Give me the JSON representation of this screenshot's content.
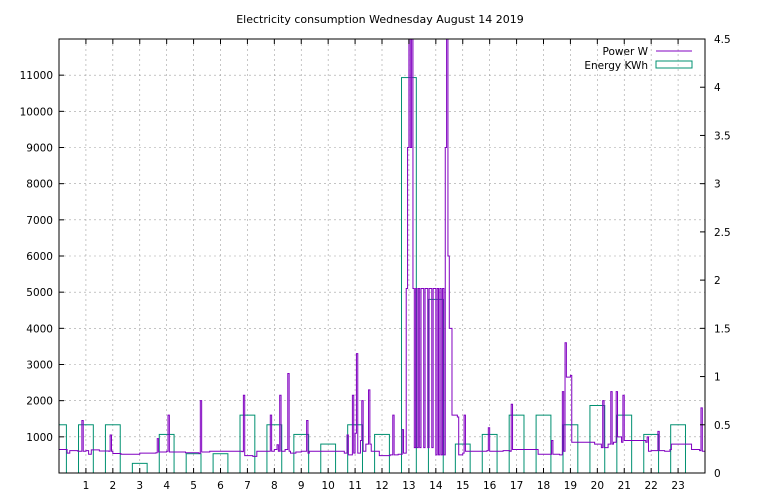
{
  "chart_data": {
    "type": "line",
    "title": "Electricity consumption Wednesday August 14 2019",
    "xlabel": "",
    "ylabel": "",
    "xlim": [
      0,
      24
    ],
    "ylim": [
      0,
      12000
    ],
    "y2lim": [
      0,
      4.5
    ],
    "x_ticks": [
      "1",
      "2",
      "3",
      "4",
      "5",
      "6",
      "7",
      "8",
      "9",
      "10",
      "11",
      "12",
      "13",
      "14",
      "15",
      "16",
      "17",
      "18",
      "19",
      "20",
      "21",
      "22",
      "23"
    ],
    "y_ticks": [
      "1000",
      "2000",
      "3000",
      "4000",
      "5000",
      "6000",
      "7000",
      "8000",
      "9000",
      "10000",
      "11000"
    ],
    "y2_ticks": [
      "0",
      "0.5",
      "1",
      "1.5",
      "2",
      "2.5",
      "3",
      "3.5",
      "4",
      "4.5"
    ],
    "grid": true,
    "legend_position": "top-right",
    "series": [
      {
        "name": "Power W",
        "axis": "left",
        "color": "#8000c0",
        "points": [
          [
            0,
            650
          ],
          [
            0.25,
            650
          ],
          [
            0.3,
            550
          ],
          [
            0.4,
            620
          ],
          [
            0.7,
            600
          ],
          [
            0.85,
            1450
          ],
          [
            0.9,
            600
          ],
          [
            1.0,
            620
          ],
          [
            1.1,
            520
          ],
          [
            1.2,
            640
          ],
          [
            1.5,
            610
          ],
          [
            1.85,
            600
          ],
          [
            1.9,
            1050
          ],
          [
            1.95,
            600
          ],
          [
            2.0,
            540
          ],
          [
            2.3,
            520
          ],
          [
            2.9,
            520
          ],
          [
            3.0,
            550
          ],
          [
            3.6,
            560
          ],
          [
            3.65,
            950
          ],
          [
            3.7,
            580
          ],
          [
            4.0,
            600
          ],
          [
            4.05,
            1600
          ],
          [
            4.1,
            580
          ],
          [
            4.7,
            560
          ],
          [
            5.0,
            560
          ],
          [
            5.2,
            540
          ],
          [
            5.25,
            2000
          ],
          [
            5.3,
            580
          ],
          [
            5.6,
            600
          ],
          [
            6.5,
            600
          ],
          [
            6.8,
            590
          ],
          [
            6.85,
            2150
          ],
          [
            6.9,
            480
          ],
          [
            7.2,
            460
          ],
          [
            7.35,
            600
          ],
          [
            7.8,
            600
          ],
          [
            7.85,
            1600
          ],
          [
            7.9,
            600
          ],
          [
            8.0,
            650
          ],
          [
            8.1,
            780
          ],
          [
            8.15,
            600
          ],
          [
            8.2,
            2150
          ],
          [
            8.25,
            600
          ],
          [
            8.4,
            650
          ],
          [
            8.5,
            2750
          ],
          [
            8.55,
            600
          ],
          [
            8.6,
            550
          ],
          [
            8.8,
            580
          ],
          [
            9.0,
            600
          ],
          [
            9.2,
            1450
          ],
          [
            9.25,
            550
          ],
          [
            9.3,
            600
          ],
          [
            10.0,
            600
          ],
          [
            10.5,
            600
          ],
          [
            10.6,
            550
          ],
          [
            10.7,
            1050
          ],
          [
            10.75,
            500
          ],
          [
            10.8,
            500
          ],
          [
            10.9,
            2150
          ],
          [
            10.95,
            550
          ],
          [
            11.0,
            1100
          ],
          [
            11.05,
            3300
          ],
          [
            11.1,
            550
          ],
          [
            11.2,
            900
          ],
          [
            11.25,
            2000
          ],
          [
            11.3,
            600
          ],
          [
            11.4,
            800
          ],
          [
            11.5,
            2300
          ],
          [
            11.55,
            800
          ],
          [
            11.6,
            600
          ],
          [
            11.8,
            600
          ],
          [
            11.9,
            480
          ],
          [
            12.3,
            500
          ],
          [
            12.4,
            1600
          ],
          [
            12.45,
            500
          ],
          [
            12.6,
            520
          ],
          [
            12.75,
            1200
          ],
          [
            12.8,
            550
          ],
          [
            12.9,
            5100
          ],
          [
            12.95,
            9000
          ],
          [
            13.0,
            12000
          ],
          [
            13.05,
            9000
          ],
          [
            13.1,
            12000
          ],
          [
            13.15,
            5100
          ],
          [
            13.2,
            700
          ],
          [
            13.25,
            5100
          ],
          [
            13.3,
            700
          ],
          [
            13.35,
            5100
          ],
          [
            13.4,
            700
          ],
          [
            13.45,
            5100
          ],
          [
            13.55,
            700
          ],
          [
            13.6,
            5100
          ],
          [
            13.7,
            700
          ],
          [
            13.75,
            5100
          ],
          [
            13.85,
            700
          ],
          [
            13.9,
            5100
          ],
          [
            14.0,
            500
          ],
          [
            14.05,
            5100
          ],
          [
            14.1,
            500
          ],
          [
            14.15,
            5100
          ],
          [
            14.2,
            500
          ],
          [
            14.25,
            5100
          ],
          [
            14.3,
            500
          ],
          [
            14.35,
            9000
          ],
          [
            14.4,
            12000
          ],
          [
            14.45,
            6000
          ],
          [
            14.5,
            4000
          ],
          [
            14.6,
            1600
          ],
          [
            14.8,
            1550
          ],
          [
            14.85,
            500
          ],
          [
            15.0,
            550
          ],
          [
            15.05,
            1600
          ],
          [
            15.1,
            600
          ],
          [
            15.3,
            600
          ],
          [
            15.9,
            620
          ],
          [
            15.95,
            1250
          ],
          [
            16.0,
            600
          ],
          [
            16.5,
            620
          ],
          [
            16.75,
            600
          ],
          [
            16.8,
            1900
          ],
          [
            16.85,
            650
          ],
          [
            17.2,
            650
          ],
          [
            17.7,
            650
          ],
          [
            17.8,
            520
          ],
          [
            18.2,
            520
          ],
          [
            18.3,
            900
          ],
          [
            18.35,
            520
          ],
          [
            18.6,
            500
          ],
          [
            18.7,
            2250
          ],
          [
            18.75,
            600
          ],
          [
            18.8,
            3600
          ],
          [
            18.85,
            2650
          ],
          [
            19.0,
            2700
          ],
          [
            19.05,
            850
          ],
          [
            19.5,
            850
          ],
          [
            19.9,
            800
          ],
          [
            20.15,
            700
          ],
          [
            20.2,
            2000
          ],
          [
            20.25,
            700
          ],
          [
            20.4,
            800
          ],
          [
            20.5,
            2250
          ],
          [
            20.55,
            800
          ],
          [
            20.6,
            850
          ],
          [
            20.7,
            2250
          ],
          [
            20.75,
            1000
          ],
          [
            20.9,
            850
          ],
          [
            20.95,
            2150
          ],
          [
            21.0,
            900
          ],
          [
            21.5,
            900
          ],
          [
            21.8,
            850
          ],
          [
            21.85,
            1000
          ],
          [
            21.9,
            600
          ],
          [
            22.0,
            620
          ],
          [
            22.2,
            620
          ],
          [
            22.25,
            1150
          ],
          [
            22.3,
            620
          ],
          [
            22.5,
            600
          ],
          [
            22.7,
            650
          ],
          [
            22.75,
            800
          ],
          [
            23.2,
            800
          ],
          [
            23.5,
            650
          ],
          [
            23.8,
            620
          ],
          [
            23.85,
            1800
          ],
          [
            23.9,
            600
          ],
          [
            24.0,
            550
          ]
        ]
      },
      {
        "name": "Energy KWh",
        "axis": "right",
        "color": "#009070",
        "type": "bar",
        "bar_width": 0.55,
        "categories": [
          0,
          1,
          2,
          3,
          4,
          5,
          6,
          7,
          8,
          9,
          10,
          11,
          12,
          13,
          14,
          15,
          16,
          17,
          18,
          19,
          20,
          21,
          22,
          23
        ],
        "values": [
          0.5,
          0.5,
          0.5,
          0.1,
          0.4,
          0.2,
          0.2,
          0.6,
          0.5,
          0.4,
          0.3,
          0.5,
          0.4,
          4.1,
          1.8,
          0.3,
          0.4,
          0.6,
          0.6,
          0.5,
          0.7,
          0.6,
          0.4,
          0.5
        ]
      }
    ]
  }
}
